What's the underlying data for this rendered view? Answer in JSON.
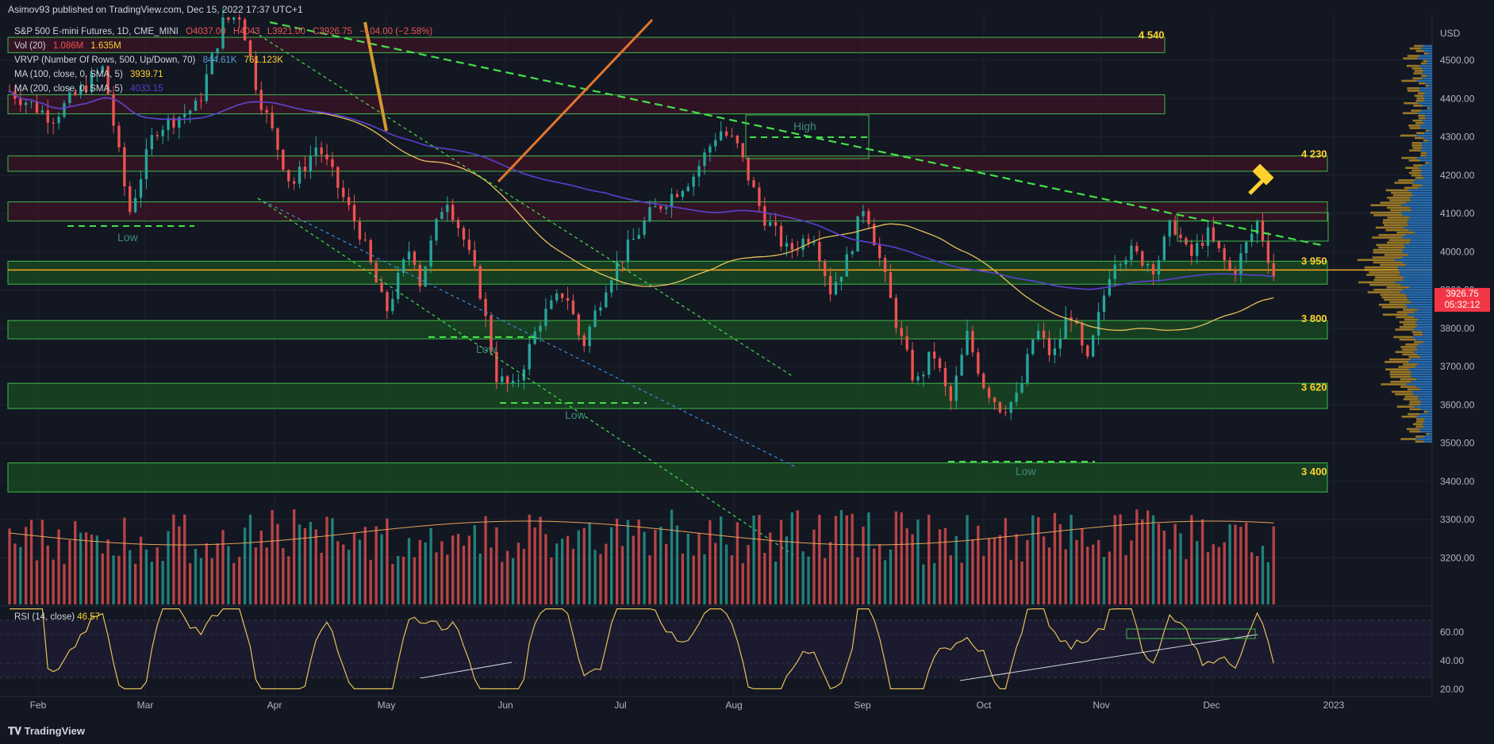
{
  "header": {
    "published": "Asimov93 published on TradingView.com, Dec 15, 2022 17:37 UTC+1"
  },
  "legend": {
    "symbol": "S&P 500 E-mini Futures, 1D, CME_MINI",
    "ohlc": {
      "o": "O4037.00",
      "h": "H4043",
      "l": "L3921.00",
      "c": "C3926.75",
      "chg": "−104.00 (−2.58%)"
    },
    "vol": {
      "label": "Vol (20)",
      "v1": "1.086M",
      "v2": "1.635M"
    },
    "vrvp": {
      "label": "VRVP (Number Of Rows, 500, Up/Down, 70)",
      "v1": "844.61K",
      "v2": "761.123K"
    },
    "ma100": {
      "label": "MA (100, close, 0, SMA, 5)",
      "value": "3939.71"
    },
    "ma200": {
      "label": "MA (200, close, 0, SMA, 5)",
      "value": "4033.15"
    }
  },
  "colors": {
    "bg": "#131722",
    "up": "#26a69a",
    "down": "#ef5350",
    "ma100": "#e6c15a",
    "ma200": "#5b3fd0",
    "zone_green": "#1b5e20",
    "zone_red": "#4a1226",
    "level_text": "#ffd12e",
    "price_tag": "#f23645",
    "volprofile_up": "#2a7ac7",
    "volprofile_down": "#c89a2a"
  },
  "price_axis": {
    "currency": "USD",
    "ticks": [
      "4500.00",
      "4400.00",
      "4300.00",
      "4200.00",
      "4100.00",
      "4000.00",
      "3900.00",
      "3800.00",
      "3700.00",
      "3600.00",
      "3500.00",
      "3400.00",
      "3300.00",
      "3200.00"
    ],
    "last_price": "3926.75",
    "countdown": "05:32:12"
  },
  "time_axis": {
    "ticks": [
      "Feb",
      "Mar",
      "Apr",
      "May",
      "Jun",
      "Jul",
      "Aug",
      "Sep",
      "Oct",
      "Nov",
      "Dec",
      "2023"
    ]
  },
  "levels": [
    {
      "label": "4 540",
      "value": 4540
    },
    {
      "label": "4 230",
      "value": 4230
    },
    {
      "label": "3 950",
      "value": 3950
    },
    {
      "label": "3 800",
      "value": 3800
    },
    {
      "label": "3 620",
      "value": 3620
    },
    {
      "label": "3 400",
      "value": 3400
    }
  ],
  "zone_labels": [
    "Low",
    "Low",
    "Low",
    "High",
    "Low"
  ],
  "rsi": {
    "label": "RSI (14, close)",
    "value": "46.57",
    "ticks": [
      "60.00",
      "40.00",
      "20.00"
    ]
  },
  "footer": {
    "brand": "TradingView"
  },
  "chart_data": {
    "type": "candlestick",
    "title": "S&P 500 E-mini Futures, 1D, CME_MINI",
    "x_range": [
      "2022-01-18",
      "2022-12-15"
    ],
    "ylim": [
      3500,
      4600
    ],
    "price_anchor_points": [
      {
        "month": "Jan-end",
        "close": 4400
      },
      {
        "month": "Feb-24",
        "close": 4110
      },
      {
        "month": "Mar-29",
        "close": 4620
      },
      {
        "month": "May-20",
        "close": 3810
      },
      {
        "month": "Jun-16",
        "close": 3640
      },
      {
        "month": "Aug-16",
        "close": 4320
      },
      {
        "month": "Oct-13",
        "close": 3500
      },
      {
        "month": "Dec-01",
        "close": 4100
      },
      {
        "month": "Dec-13",
        "close": 4180
      },
      {
        "month": "Dec-15",
        "close": 3926.75
      }
    ],
    "rsi_ylim": [
      20,
      80
    ],
    "grid": true
  }
}
